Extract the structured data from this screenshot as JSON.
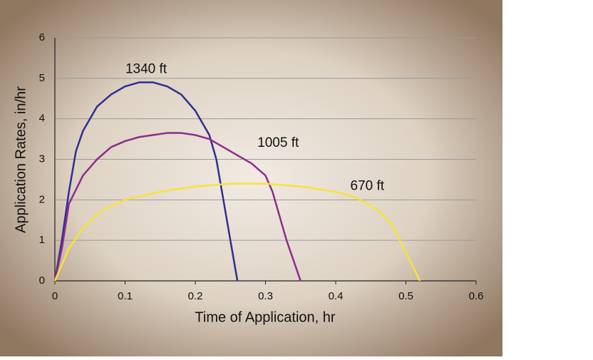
{
  "chart_data": {
    "type": "line",
    "x_label": "Time of Application, hr",
    "y_label": "Application Rates, in/hr",
    "xlim": [
      0,
      0.6
    ],
    "xticks": [
      0,
      0.1,
      0.2,
      0.3,
      0.4,
      0.5,
      0.6
    ],
    "ylim": [
      0,
      6
    ],
    "yticks": [
      0,
      1,
      2,
      3,
      4,
      5,
      6
    ],
    "grid": true,
    "series": [
      {
        "name": "1340 ft",
        "color": "#2e2f8f",
        "x": [
          0,
          0.01,
          0.02,
          0.03,
          0.04,
          0.06,
          0.08,
          0.1,
          0.12,
          0.14,
          0.16,
          0.18,
          0.2,
          0.22,
          0.23,
          0.24,
          0.25,
          0.26
        ],
        "values": [
          0,
          1.0,
          2.2,
          3.2,
          3.7,
          4.3,
          4.6,
          4.8,
          4.9,
          4.9,
          4.8,
          4.6,
          4.2,
          3.6,
          3.0,
          2.0,
          1.0,
          0
        ]
      },
      {
        "name": "1005 ft",
        "color": "#8e2b8e",
        "x": [
          0,
          0.01,
          0.02,
          0.04,
          0.06,
          0.08,
          0.1,
          0.12,
          0.14,
          0.16,
          0.18,
          0.2,
          0.22,
          0.24,
          0.26,
          0.28,
          0.3,
          0.31,
          0.32,
          0.33,
          0.34,
          0.35
        ],
        "values": [
          0,
          0.8,
          1.9,
          2.6,
          3.0,
          3.3,
          3.45,
          3.55,
          3.6,
          3.65,
          3.65,
          3.6,
          3.5,
          3.3,
          3.1,
          2.9,
          2.6,
          2.2,
          1.6,
          1.0,
          0.5,
          0
        ]
      },
      {
        "name": "670 ft",
        "color": "#f6e33b",
        "x": [
          0,
          0.02,
          0.04,
          0.06,
          0.08,
          0.1,
          0.15,
          0.2,
          0.25,
          0.3,
          0.35,
          0.4,
          0.43,
          0.46,
          0.48,
          0.5,
          0.52
        ],
        "values": [
          0,
          0.8,
          1.3,
          1.65,
          1.85,
          2.0,
          2.2,
          2.33,
          2.4,
          2.4,
          2.33,
          2.2,
          2.05,
          1.75,
          1.4,
          0.7,
          0
        ]
      }
    ]
  }
}
